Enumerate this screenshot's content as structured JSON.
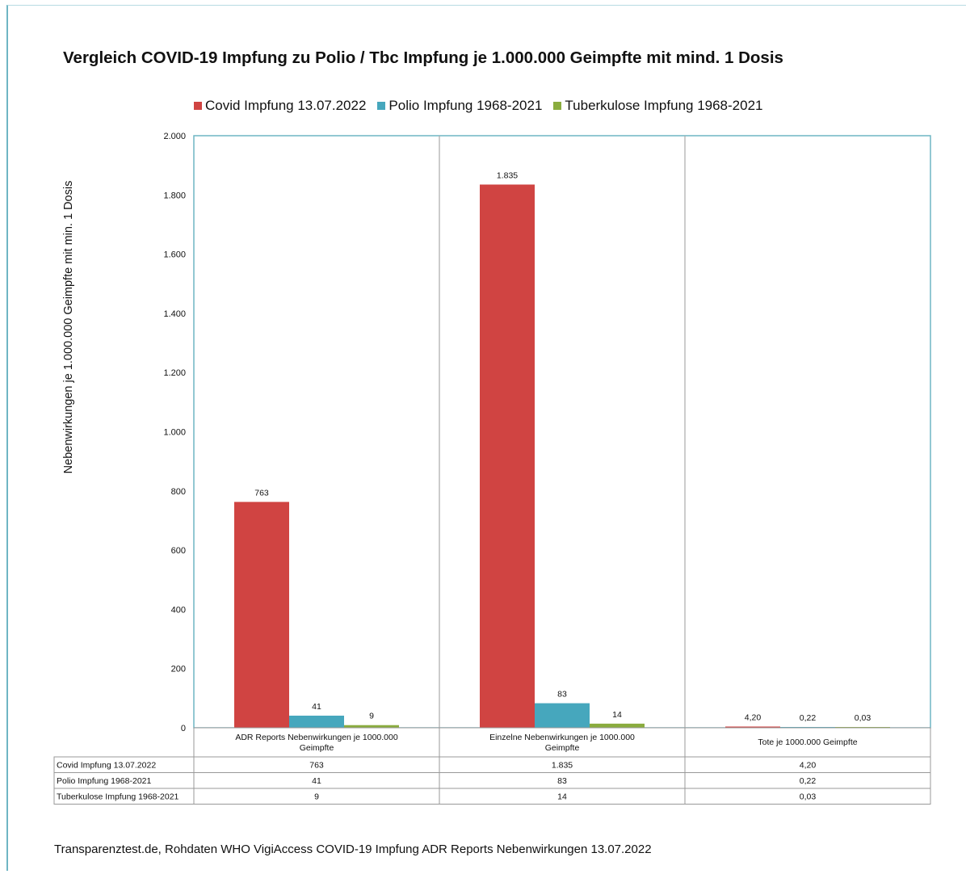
{
  "colors": {
    "covid": "#d04442",
    "polio": "#46a7bd",
    "tbc": "#8aac3e",
    "plot_border": "#6fb6c4"
  },
  "chart_data": {
    "type": "bar",
    "title": "Vergleich COVID-19 Impfung zu Polio / Tbc Impfung je 1.000.000 Geimpfte mit mind. 1 Dosis",
    "ylabel": "Nebenwirkungen je 1.000.000 Geimpfte mit min. 1 Dosis",
    "xlabel": "",
    "ylim": [
      0,
      2000
    ],
    "yticks": [
      0,
      200,
      400,
      600,
      800,
      1000,
      1200,
      1400,
      1600,
      1800,
      2000
    ],
    "ytick_labels": [
      "0",
      "200",
      "400",
      "600",
      "800",
      "1.000",
      "1.200",
      "1.400",
      "1.600",
      "1.800",
      "2.000"
    ],
    "categories": [
      "ADR Reports Nebenwirkungen je 1000.000 Geimpfte",
      "Einzelne Nebenwirkungen je 1000.000 Geimpfte",
      "Tote je 1000.000 Geimpfte"
    ],
    "category_lines": [
      [
        "ADR Reports Nebenwirkungen je 1000.000",
        "Geimpfte"
      ],
      [
        "Einzelne Nebenwirkungen je 1000.000",
        "Geimpfte"
      ],
      [
        "Tote je 1000.000 Geimpfte"
      ]
    ],
    "series": [
      {
        "name": "Covid Impfung 13.07.2022",
        "values": [
          763,
          1835,
          4.2
        ],
        "labels": [
          "763",
          "1.835",
          "4,20"
        ]
      },
      {
        "name": "Polio Impfung 1968-2021",
        "values": [
          41,
          83,
          0.22
        ],
        "labels": [
          "41",
          "83",
          "0,22"
        ]
      },
      {
        "name": "Tuberkulose Impfung 1968-2021",
        "values": [
          9,
          14,
          0.03
        ],
        "labels": [
          "9",
          "14",
          "0,03"
        ]
      }
    ],
    "legend_position": "top",
    "grid": false
  },
  "footer": "Transparenztest.de, Rohdaten WHO VigiAccess COVID-19 Impfung ADR Reports Nebenwirkungen 13.07.2022"
}
